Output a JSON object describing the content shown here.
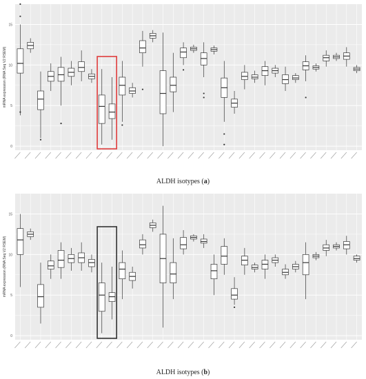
{
  "colors": {
    "panel_bg": "#ebebeb",
    "grid": "#ffffff",
    "box_fill": "#ffffff",
    "box_stroke": "#333333",
    "highlight_a": "#e03c3c",
    "highlight_b": "#333333"
  },
  "captions": {
    "a_text": "ALDH isotypes (",
    "a_letter": "a",
    "a_close": ")",
    "b_text": "ALDH isotypes (",
    "b_letter": "b",
    "b_close": ")"
  },
  "chart_data": [
    {
      "type": "box",
      "ylabel": "mRNA expression (RNA Seq V2 RSEM)",
      "ylim": [
        -0.5,
        17.5
      ],
      "yticks": [
        0,
        5,
        10,
        15
      ],
      "grid": true,
      "groups": 12,
      "highlight_group": 4,
      "boxes": [
        {
          "min": 3.8,
          "q1": 9.0,
          "med": 10.2,
          "q3": 12.0,
          "max": 15.0,
          "out": [
            16.0,
            17.5,
            4.2
          ]
        },
        {
          "min": 11.5,
          "q1": 12.0,
          "med": 12.4,
          "q3": 12.8,
          "max": 13.3,
          "out": []
        },
        {
          "min": 1.0,
          "q1": 4.5,
          "med": 5.8,
          "q3": 6.8,
          "max": 9.2,
          "out": [
            0.8
          ]
        },
        {
          "min": 6.8,
          "q1": 8.0,
          "med": 8.6,
          "q3": 9.2,
          "max": 10.2,
          "out": []
        },
        {
          "min": 5.0,
          "q1": 8.0,
          "med": 8.8,
          "q3": 9.7,
          "max": 11.0,
          "out": [
            2.8
          ]
        },
        {
          "min": 7.5,
          "q1": 8.6,
          "med": 9.1,
          "q3": 9.6,
          "max": 10.5,
          "out": []
        },
        {
          "min": 8.0,
          "q1": 9.2,
          "med": 9.7,
          "q3": 10.4,
          "max": 11.8,
          "out": []
        },
        {
          "min": 7.8,
          "q1": 8.3,
          "med": 8.6,
          "q3": 8.9,
          "max": 9.5,
          "out": []
        },
        {
          "min": 0.2,
          "q1": 2.8,
          "med": 4.9,
          "q3": 6.3,
          "max": 9.5,
          "out": []
        },
        {
          "min": 0.8,
          "q1": 3.4,
          "med": 4.2,
          "q3": 5.2,
          "max": 8.5,
          "out": []
        },
        {
          "min": 3.0,
          "q1": 6.3,
          "med": 7.5,
          "q3": 8.5,
          "max": 10.5,
          "out": [
            2.6
          ]
        },
        {
          "min": 6.0,
          "q1": 6.5,
          "med": 6.8,
          "q3": 7.2,
          "max": 7.8,
          "out": []
        },
        {
          "min": 9.8,
          "q1": 11.5,
          "med": 12.1,
          "q3": 13.0,
          "max": 14.2,
          "out": [
            7.0
          ]
        },
        {
          "min": 12.8,
          "q1": 13.3,
          "med": 13.6,
          "q3": 13.9,
          "max": 14.3,
          "out": []
        },
        {
          "min": 0.0,
          "q1": 4.0,
          "med": 6.5,
          "q3": 9.3,
          "max": 14.0,
          "out": []
        },
        {
          "min": 4.2,
          "q1": 6.7,
          "med": 7.5,
          "q3": 8.5,
          "max": 11.5,
          "out": []
        },
        {
          "min": 10.0,
          "q1": 10.9,
          "med": 11.6,
          "q3": 12.1,
          "max": 12.8,
          "out": [
            9.4
          ]
        },
        {
          "min": 11.5,
          "q1": 11.8,
          "med": 12.0,
          "q3": 12.2,
          "max": 12.5,
          "out": []
        },
        {
          "min": 8.5,
          "q1": 10.0,
          "med": 10.8,
          "q3": 11.5,
          "max": 12.8,
          "out": [
            6.5,
            6.0
          ]
        },
        {
          "min": 11.3,
          "q1": 11.7,
          "med": 11.9,
          "q3": 12.1,
          "max": 12.4,
          "out": []
        },
        {
          "min": 3.0,
          "q1": 6.0,
          "med": 7.2,
          "q3": 8.4,
          "max": 10.5,
          "out": [
            1.5,
            0.2
          ]
        },
        {
          "min": 4.0,
          "q1": 4.8,
          "med": 5.3,
          "q3": 5.8,
          "max": 6.8,
          "out": []
        },
        {
          "min": 7.0,
          "q1": 8.2,
          "med": 8.6,
          "q3": 9.1,
          "max": 10.0,
          "out": []
        },
        {
          "min": 7.8,
          "q1": 8.3,
          "med": 8.5,
          "q3": 8.8,
          "max": 9.3,
          "out": []
        },
        {
          "min": 7.5,
          "q1": 8.7,
          "med": 9.3,
          "q3": 9.8,
          "max": 10.5,
          "out": []
        },
        {
          "min": 8.5,
          "q1": 9.0,
          "med": 9.3,
          "q3": 9.6,
          "max": 10.0,
          "out": []
        },
        {
          "min": 6.8,
          "q1": 7.7,
          "med": 8.2,
          "q3": 8.8,
          "max": 9.8,
          "out": []
        },
        {
          "min": 7.8,
          "q1": 8.2,
          "med": 8.4,
          "q3": 8.7,
          "max": 9.0,
          "out": []
        },
        {
          "min": 8.0,
          "q1": 9.4,
          "med": 9.9,
          "q3": 10.4,
          "max": 11.2,
          "out": [
            6.0
          ]
        },
        {
          "min": 9.2,
          "q1": 9.5,
          "med": 9.7,
          "q3": 9.9,
          "max": 10.2,
          "out": []
        },
        {
          "min": 9.8,
          "q1": 10.5,
          "med": 10.9,
          "q3": 11.2,
          "max": 11.8,
          "out": []
        },
        {
          "min": 10.5,
          "q1": 10.8,
          "med": 11.0,
          "q3": 11.2,
          "max": 11.5,
          "out": []
        },
        {
          "min": 9.8,
          "q1": 10.7,
          "med": 11.1,
          "q3": 11.5,
          "max": 12.2,
          "out": []
        },
        {
          "min": 9.0,
          "q1": 9.3,
          "med": 9.5,
          "q3": 9.7,
          "max": 10.0,
          "out": []
        }
      ]
    },
    {
      "type": "box",
      "ylabel": "mRNA expression (RNA Seq V2 RSEM)",
      "ylim": [
        -0.5,
        17.5
      ],
      "yticks": [
        0,
        5,
        10,
        15
      ],
      "grid": true,
      "groups": 12,
      "highlight_group": 4,
      "boxes": [
        {
          "min": 6.0,
          "q1": 10.0,
          "med": 11.8,
          "q3": 13.2,
          "max": 15.0,
          "out": []
        },
        {
          "min": 11.8,
          "q1": 12.2,
          "med": 12.5,
          "q3": 12.8,
          "max": 13.2,
          "out": []
        },
        {
          "min": 1.5,
          "q1": 3.5,
          "med": 4.8,
          "q3": 6.3,
          "max": 9.0,
          "out": []
        },
        {
          "min": 7.0,
          "q1": 8.2,
          "med": 8.6,
          "q3": 9.2,
          "max": 10.0,
          "out": []
        },
        {
          "min": 7.0,
          "q1": 8.4,
          "med": 9.3,
          "q3": 10.5,
          "max": 11.5,
          "out": []
        },
        {
          "min": 8.0,
          "q1": 9.0,
          "med": 9.5,
          "q3": 10.0,
          "max": 10.8,
          "out": []
        },
        {
          "min": 8.0,
          "q1": 9.0,
          "med": 9.6,
          "q3": 10.2,
          "max": 11.5,
          "out": []
        },
        {
          "min": 7.8,
          "q1": 8.5,
          "med": 9.0,
          "q3": 9.4,
          "max": 10.0,
          "out": []
        },
        {
          "min": 0.3,
          "q1": 3.0,
          "med": 5.0,
          "q3": 6.5,
          "max": 9.0,
          "out": []
        },
        {
          "min": 2.0,
          "q1": 4.2,
          "med": 4.8,
          "q3": 5.3,
          "max": 8.5,
          "out": []
        },
        {
          "min": 4.5,
          "q1": 7.0,
          "med": 8.2,
          "q3": 9.0,
          "max": 10.5,
          "out": []
        },
        {
          "min": 5.8,
          "q1": 6.8,
          "med": 7.3,
          "q3": 7.8,
          "max": 8.5,
          "out": []
        },
        {
          "min": 10.0,
          "q1": 10.8,
          "med": 11.2,
          "q3": 11.8,
          "max": 12.5,
          "out": []
        },
        {
          "min": 12.8,
          "q1": 13.3,
          "med": 13.6,
          "q3": 13.9,
          "max": 14.3,
          "out": []
        },
        {
          "min": 1.0,
          "q1": 6.5,
          "med": 9.5,
          "q3": 12.5,
          "max": 16.0,
          "out": []
        },
        {
          "min": 4.5,
          "q1": 6.5,
          "med": 7.6,
          "q3": 9.0,
          "max": 12.0,
          "out": []
        },
        {
          "min": 10.0,
          "q1": 10.7,
          "med": 11.2,
          "q3": 12.1,
          "max": 13.0,
          "out": []
        },
        {
          "min": 11.6,
          "q1": 11.9,
          "med": 12.1,
          "q3": 12.3,
          "max": 12.5,
          "out": []
        },
        {
          "min": 10.8,
          "q1": 11.4,
          "med": 11.6,
          "q3": 11.9,
          "max": 12.5,
          "out": []
        },
        {
          "min": 5.0,
          "q1": 7.0,
          "med": 8.0,
          "q3": 8.8,
          "max": 10.0,
          "out": []
        },
        {
          "min": 7.5,
          "q1": 8.8,
          "med": 9.8,
          "q3": 11.0,
          "max": 12.0,
          "out": []
        },
        {
          "min": 3.8,
          "q1": 4.5,
          "med": 5.0,
          "q3": 5.8,
          "max": 7.2,
          "out": [
            3.5
          ]
        },
        {
          "min": 7.5,
          "q1": 8.7,
          "med": 9.3,
          "q3": 9.8,
          "max": 10.8,
          "out": []
        },
        {
          "min": 7.8,
          "q1": 8.2,
          "med": 8.4,
          "q3": 8.7,
          "max": 9.0,
          "out": []
        },
        {
          "min": 7.0,
          "q1": 8.2,
          "med": 8.8,
          "q3": 9.3,
          "max": 10.0,
          "out": []
        },
        {
          "min": 8.5,
          "q1": 9.0,
          "med": 9.3,
          "q3": 9.6,
          "max": 10.0,
          "out": []
        },
        {
          "min": 7.0,
          "q1": 7.5,
          "med": 7.8,
          "q3": 8.2,
          "max": 8.8,
          "out": []
        },
        {
          "min": 7.8,
          "q1": 8.2,
          "med": 8.5,
          "q3": 8.8,
          "max": 9.2,
          "out": []
        },
        {
          "min": 4.5,
          "q1": 7.5,
          "med": 9.0,
          "q3": 10.0,
          "max": 11.5,
          "out": []
        },
        {
          "min": 9.3,
          "q1": 9.6,
          "med": 9.8,
          "q3": 10.0,
          "max": 10.3,
          "out": []
        },
        {
          "min": 9.8,
          "q1": 10.5,
          "med": 10.8,
          "q3": 11.2,
          "max": 11.8,
          "out": []
        },
        {
          "min": 10.5,
          "q1": 10.8,
          "med": 11.0,
          "q3": 11.2,
          "max": 11.5,
          "out": []
        },
        {
          "min": 10.0,
          "q1": 10.7,
          "med": 11.2,
          "q3": 11.6,
          "max": 12.3,
          "out": []
        },
        {
          "min": 9.0,
          "q1": 9.3,
          "med": 9.5,
          "q3": 9.8,
          "max": 10.0,
          "out": []
        }
      ]
    }
  ]
}
